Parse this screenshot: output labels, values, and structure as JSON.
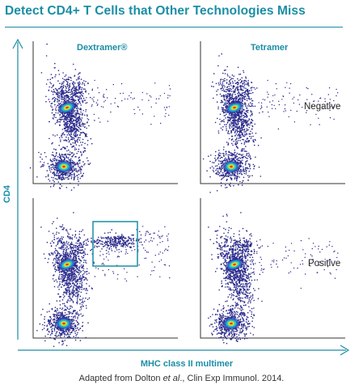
{
  "header": {
    "title": "Detect CD4+ T Cells that Other Technologies Miss"
  },
  "chart_data": {
    "type": "scatter",
    "title": "Detect CD4+ T Cells that Other Technologies Miss",
    "xlabel": "MHC class II multimer",
    "ylabel": "CD4",
    "columns": [
      "Dextramer®",
      "Tetramer"
    ],
    "rows": [
      "Negative",
      "Positive"
    ],
    "colors": {
      "accent": "#1a8ea6",
      "low": "#2b2a8c",
      "mid": "#22c1c3",
      "high": "#ff2a00",
      "gate": "#1a8ea6"
    },
    "panels": [
      {
        "column": "Dextramer®",
        "row": "Negative",
        "gated_population": false
      },
      {
        "column": "Tetramer",
        "row": "Negative",
        "gated_population": false
      },
      {
        "column": "Dextramer®",
        "row": "Positive",
        "gated_population": true
      },
      {
        "column": "Tetramer",
        "row": "Positive",
        "gated_population": false
      }
    ],
    "grid": false,
    "legend": "none"
  },
  "caption": {
    "prefix": "Adapted from Dolton ",
    "italic": "et al",
    "suffix": "., Clin Exp Immunol. 2014."
  }
}
